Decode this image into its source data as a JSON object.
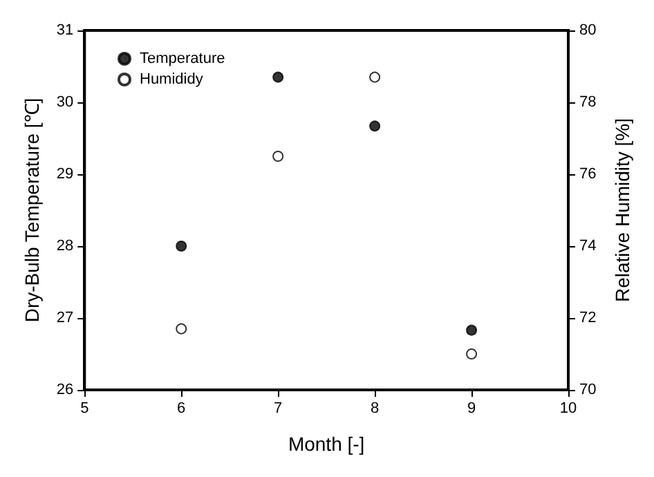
{
  "chart_data": {
    "type": "scatter",
    "xlabel": "Month [-]",
    "ylabel": "Dry-Bulb Temperature [℃]",
    "y2label": "Relative Humidity [%]",
    "x": [
      6,
      7,
      8,
      9
    ],
    "series": [
      {
        "name": "Temperature",
        "color": "#000000",
        "values": [
          28.0,
          30.35,
          29.67,
          26.83
        ]
      },
      {
        "name": "Humididy",
        "color": "#000000",
        "axis": "y2",
        "values": [
          71.7,
          76.5,
          78.7,
          71.0
        ]
      }
    ],
    "xlim": [
      5,
      10
    ],
    "xticks": [
      5,
      6,
      7,
      8,
      9,
      10
    ],
    "ylim": [
      26,
      31
    ],
    "yticks": [
      26,
      27,
      28,
      29,
      30,
      31
    ],
    "y2lim": [
      70,
      80
    ],
    "y2ticks": [
      70,
      72,
      74,
      76,
      78,
      80
    ],
    "legend": "top left",
    "marker": "circle",
    "grid": false
  }
}
